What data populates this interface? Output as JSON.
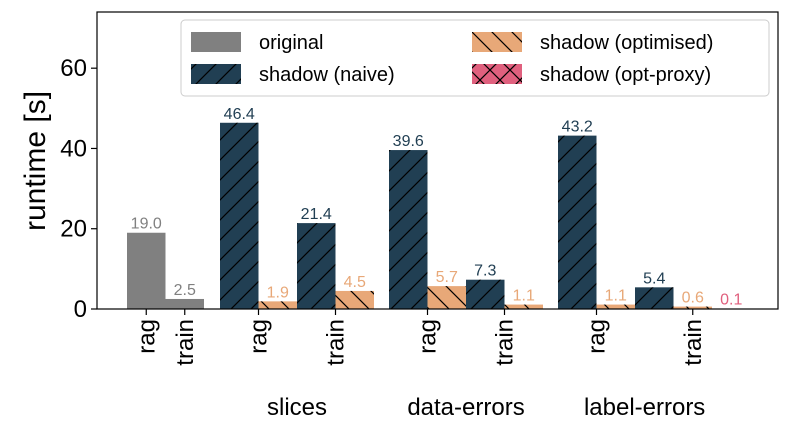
{
  "chart_data": {
    "type": "bar",
    "ylabel": "runtime [s]",
    "xlabel": "",
    "ylim": [
      0,
      74
    ],
    "yticks": [
      0,
      20,
      40,
      60
    ],
    "grid": false,
    "legend_placement": "top-right",
    "series": [
      {
        "name": "original",
        "color": "#808080",
        "hatch": "none"
      },
      {
        "name": "shadow (naive)",
        "color": "#213f53",
        "hatch": "/"
      },
      {
        "name": "shadow (optimised)",
        "color": "#e8a878",
        "hatch": "\\"
      },
      {
        "name": "shadow (opt-proxy)",
        "color": "#e0607e",
        "hatch": "x"
      }
    ],
    "groups": [
      {
        "label": "",
        "splits": [
          {
            "tick": "rag",
            "bars": [
              {
                "series": 0,
                "value": 19.0,
                "label": "19.0"
              }
            ]
          },
          {
            "tick": "train",
            "bars": [
              {
                "series": 0,
                "value": 2.5,
                "label": "2.5"
              }
            ]
          }
        ]
      },
      {
        "label": "slices",
        "splits": [
          {
            "tick": "rag",
            "bars": [
              {
                "series": 1,
                "value": 46.4,
                "label": "46.4"
              },
              {
                "series": 2,
                "value": 1.9,
                "label": "1.9"
              }
            ]
          },
          {
            "tick": "train",
            "bars": [
              {
                "series": 1,
                "value": 21.4,
                "label": "21.4"
              },
              {
                "series": 2,
                "value": 4.5,
                "label": "4.5"
              }
            ]
          }
        ]
      },
      {
        "label": "data-errors",
        "splits": [
          {
            "tick": "rag",
            "bars": [
              {
                "series": 1,
                "value": 39.6,
                "label": "39.6"
              },
              {
                "series": 2,
                "value": 5.7,
                "label": "5.7"
              }
            ]
          },
          {
            "tick": "train",
            "bars": [
              {
                "series": 1,
                "value": 7.3,
                "label": "7.3"
              },
              {
                "series": 2,
                "value": 1.1,
                "label": "1.1"
              }
            ]
          }
        ]
      },
      {
        "label": "label-errors",
        "splits": [
          {
            "tick": "rag",
            "bars": [
              {
                "series": 1,
                "value": 43.2,
                "label": "43.2"
              },
              {
                "series": 2,
                "value": 1.1,
                "label": "1.1"
              }
            ]
          },
          {
            "tick": "train",
            "bars": [
              {
                "series": 1,
                "value": 5.4,
                "label": "5.4"
              },
              {
                "series": 2,
                "value": 0.6,
                "label": "0.6"
              },
              {
                "series": 3,
                "value": 0.1,
                "label": "0.1"
              }
            ]
          }
        ]
      }
    ]
  }
}
